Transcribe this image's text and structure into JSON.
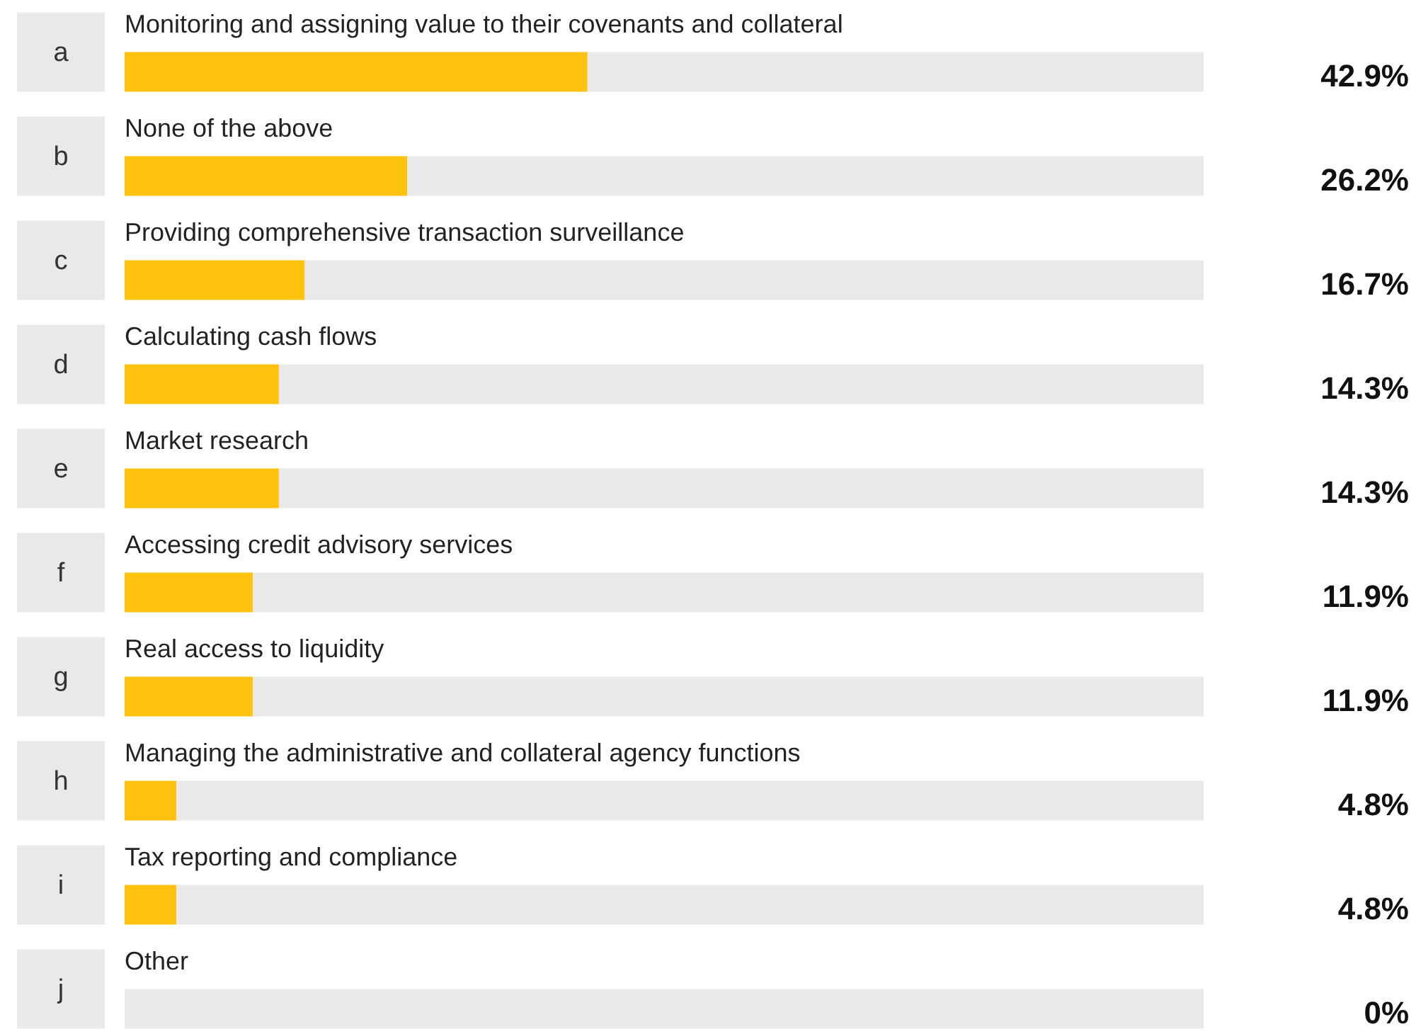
{
  "chart_data": {
    "type": "bar",
    "orientation": "horizontal",
    "stacked": true,
    "categories": [
      "Monitoring and assigning value to their covenants and collateral",
      "None of the above",
      "Providing comprehensive transaction surveillance",
      "Calculating cash flows",
      "Market research",
      "Accessing credit advisory services",
      "Real access to liquidity",
      "Managing the administrative and collateral agency functions",
      "Tax reporting and compliance",
      "Other"
    ],
    "series": [
      {
        "color": "#ffc20e",
        "values": [
          42.9,
          26.2,
          16.7,
          14.3,
          14.3,
          11.9,
          11.9,
          4.8,
          4.8,
          0
        ],
        "value_labels": [
          "42.9%",
          "26.2%",
          "16.7%",
          "14.3%",
          "14.3%",
          "11.9%",
          "11.9%",
          "4.8%",
          "4.8%",
          "0%"
        ]
      },
      {
        "color": "#e9e9ea",
        "values": [
          57.1,
          73.8,
          83.3,
          85.7,
          85.7,
          88.1,
          88.1,
          95.2,
          95.2,
          100
        ]
      }
    ],
    "xlim": [
      0,
      100
    ],
    "annotations": [
      "a",
      "b",
      "c",
      "d",
      "e",
      "f",
      "g",
      "h",
      "i",
      "j"
    ]
  }
}
